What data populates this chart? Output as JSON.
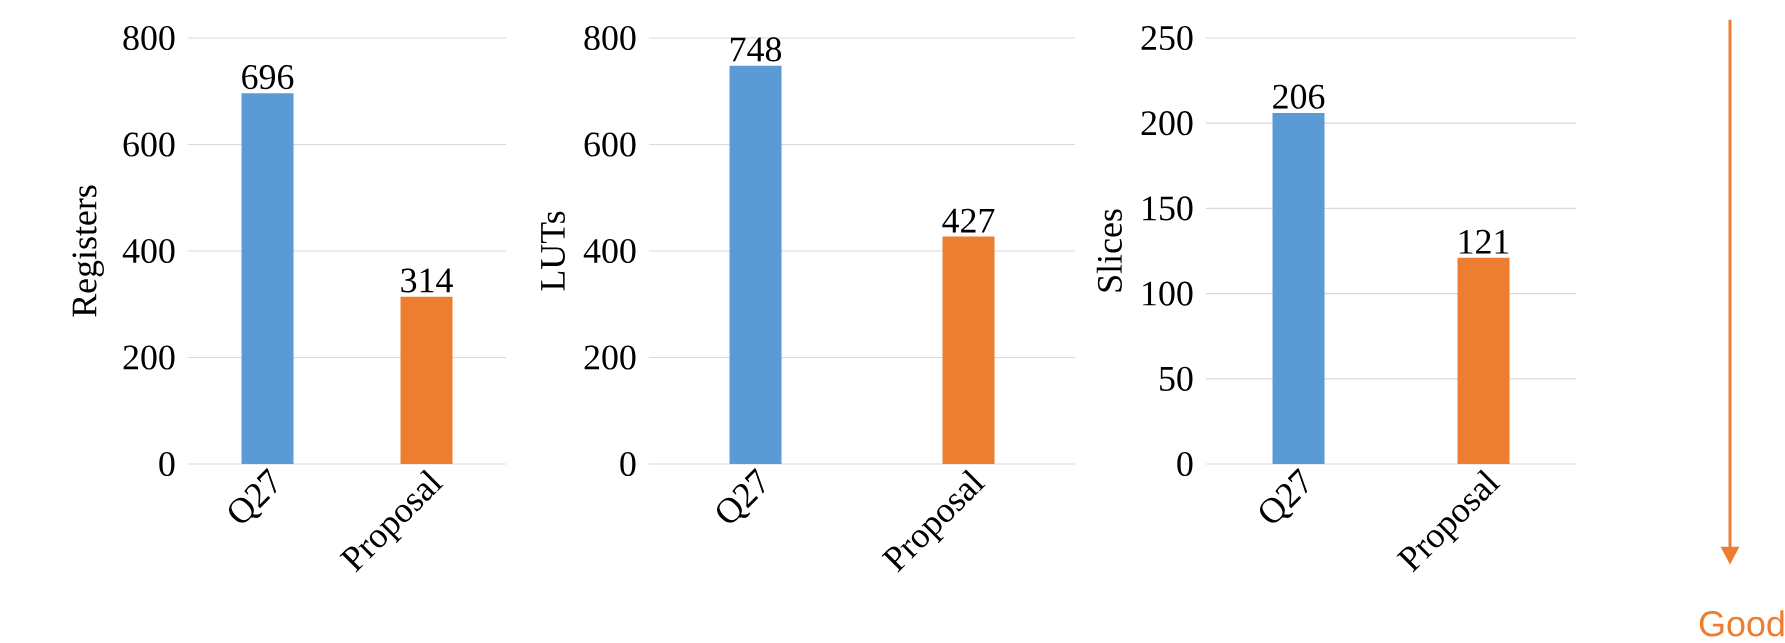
{
  "chart_data": [
    {
      "type": "bar",
      "categories": [
        "Q27",
        "Proposal"
      ],
      "values": [
        696,
        314
      ],
      "colors": [
        "#5b9bd5",
        "#ed7d31"
      ],
      "ylabel": "Registers",
      "ylim": [
        0,
        800
      ],
      "yticks": [
        0,
        200,
        400,
        600,
        800
      ],
      "grid": "y",
      "data_labels": true
    },
    {
      "type": "bar",
      "categories": [
        "Q27",
        "Proposal"
      ],
      "values": [
        748,
        427
      ],
      "colors": [
        "#5b9bd5",
        "#ed7d31"
      ],
      "ylabel": "LUTs",
      "ylim": [
        0,
        800
      ],
      "yticks": [
        0,
        200,
        400,
        600,
        800
      ],
      "grid": "y",
      "data_labels": true
    },
    {
      "type": "bar",
      "categories": [
        "Q27",
        "Proposal"
      ],
      "values": [
        206,
        121
      ],
      "colors": [
        "#5b9bd5",
        "#ed7d31"
      ],
      "ylabel": "Slices",
      "ylim": [
        0,
        250
      ],
      "yticks": [
        0,
        50,
        100,
        150,
        200,
        250
      ],
      "grid": "y",
      "data_labels": true,
      "annotations": [
        "Good"
      ]
    }
  ]
}
